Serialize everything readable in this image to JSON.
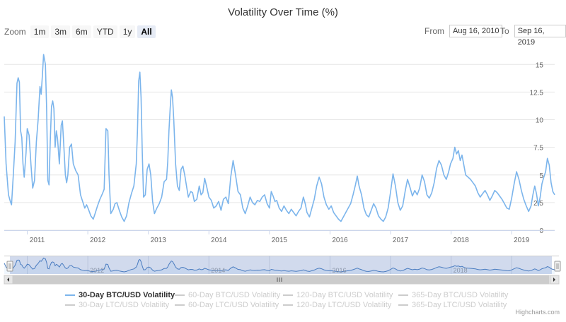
{
  "title": "Volatility Over Time (%)",
  "zoom": {
    "label": "Zoom",
    "buttons": [
      "1m",
      "3m",
      "6m",
      "YTD",
      "1y",
      "All"
    ],
    "active_index": 5
  },
  "range": {
    "from_label": "From",
    "from_value": "Aug 16, 2010",
    "to_label": "To",
    "to_value": "Sep 16, 2019"
  },
  "legend": [
    {
      "label": "30-Day BTC/USD Volatility",
      "visible": true
    },
    {
      "label": "60-Day BTC/USD Volatility",
      "visible": false
    },
    {
      "label": "120-Day BTC/USD Volatility",
      "visible": false
    },
    {
      "label": "365-Day BTC/USD Volatility",
      "visible": false
    },
    {
      "label": "30-Day LTC/USD Volatility",
      "visible": false
    },
    {
      "label": "60-Day LTC/USD Volatility",
      "visible": false
    },
    {
      "label": "120-Day LTC/USD Volatility",
      "visible": false
    },
    {
      "label": "365-Day LTC/USD Volatility",
      "visible": false
    }
  ],
  "credits": "Highcharts.com",
  "colors": {
    "series": "#7cb5ec",
    "navigator_fill": "#c9d4ea",
    "grid": "#e6e6e6",
    "axis_text": "#666666",
    "hidden_legend": "#cccccc"
  },
  "chart_data": {
    "type": "line",
    "x_unit": "decimal year",
    "xlim": [
      2010.62,
      2019.71
    ],
    "ylim": [
      0,
      17
    ],
    "y_ticks": [
      0,
      2.5,
      5,
      7.5,
      10,
      12.5,
      15
    ],
    "y_tick_labels": [
      "0",
      "2.5",
      "5",
      "7.5",
      "10",
      "12.5",
      "15"
    ],
    "x_ticks": [
      2011,
      2012,
      2013,
      2014,
      2015,
      2016,
      2017,
      2018,
      2019
    ],
    "x_tick_labels": [
      "2011",
      "2012",
      "2013",
      "2014",
      "2015",
      "2016",
      "2017",
      "2018",
      "2019"
    ],
    "navigator_labels": [
      "2012",
      "2014",
      "2016",
      "2018"
    ],
    "series": [
      {
        "name": "30-Day BTC/USD Volatility",
        "points": [
          [
            2010.62,
            10.3
          ],
          [
            2010.65,
            6.0
          ],
          [
            2010.69,
            3.2
          ],
          [
            2010.72,
            2.6
          ],
          [
            2010.74,
            2.3
          ],
          [
            2010.77,
            5.0
          ],
          [
            2010.8,
            8.0
          ],
          [
            2010.83,
            13.3
          ],
          [
            2010.85,
            13.8
          ],
          [
            2010.87,
            13.4
          ],
          [
            2010.89,
            9.0
          ],
          [
            2010.91,
            8.4
          ],
          [
            2010.93,
            6.0
          ],
          [
            2010.95,
            4.8
          ],
          [
            2010.98,
            7.0
          ],
          [
            2011.0,
            9.2
          ],
          [
            2011.03,
            8.6
          ],
          [
            2011.06,
            6.0
          ],
          [
            2011.09,
            3.8
          ],
          [
            2011.12,
            4.5
          ],
          [
            2011.15,
            8.0
          ],
          [
            2011.18,
            10.0
          ],
          [
            2011.21,
            13.0
          ],
          [
            2011.23,
            12.3
          ],
          [
            2011.25,
            14.0
          ],
          [
            2011.27,
            15.9
          ],
          [
            2011.3,
            15.0
          ],
          [
            2011.32,
            11.0
          ],
          [
            2011.34,
            4.5
          ],
          [
            2011.36,
            4.1
          ],
          [
            2011.38,
            8.0
          ],
          [
            2011.4,
            11.2
          ],
          [
            2011.42,
            11.7
          ],
          [
            2011.44,
            11.0
          ],
          [
            2011.46,
            7.5
          ],
          [
            2011.48,
            9.0
          ],
          [
            2011.5,
            8.3
          ],
          [
            2011.53,
            6.0
          ],
          [
            2011.56,
            9.5
          ],
          [
            2011.58,
            9.9
          ],
          [
            2011.6,
            8.0
          ],
          [
            2011.63,
            5.0
          ],
          [
            2011.65,
            4.3
          ],
          [
            2011.67,
            5.0
          ],
          [
            2011.7,
            7.5
          ],
          [
            2011.73,
            7.8
          ],
          [
            2011.76,
            6.0
          ],
          [
            2011.8,
            5.4
          ],
          [
            2011.84,
            5.0
          ],
          [
            2011.88,
            3.2
          ],
          [
            2011.92,
            2.5
          ],
          [
            2011.95,
            2.0
          ],
          [
            2011.98,
            2.3
          ],
          [
            2012.01,
            1.9
          ],
          [
            2012.05,
            1.3
          ],
          [
            2012.09,
            1.0
          ],
          [
            2012.12,
            1.5
          ],
          [
            2012.16,
            2.2
          ],
          [
            2012.2,
            2.8
          ],
          [
            2012.24,
            3.3
          ],
          [
            2012.27,
            3.7
          ],
          [
            2012.3,
            9.2
          ],
          [
            2012.33,
            9.0
          ],
          [
            2012.35,
            5.0
          ],
          [
            2012.38,
            1.5
          ],
          [
            2012.42,
            1.9
          ],
          [
            2012.45,
            2.4
          ],
          [
            2012.48,
            2.5
          ],
          [
            2012.52,
            1.8
          ],
          [
            2012.56,
            1.2
          ],
          [
            2012.6,
            0.8
          ],
          [
            2012.64,
            1.3
          ],
          [
            2012.68,
            2.5
          ],
          [
            2012.72,
            3.3
          ],
          [
            2012.76,
            4.0
          ],
          [
            2012.8,
            6.0
          ],
          [
            2012.82,
            9.0
          ],
          [
            2012.84,
            13.5
          ],
          [
            2012.86,
            14.3
          ],
          [
            2012.88,
            12.0
          ],
          [
            2012.9,
            7.0
          ],
          [
            2012.92,
            3.0
          ],
          [
            2012.95,
            3.2
          ],
          [
            2012.98,
            5.5
          ],
          [
            2013.01,
            6.0
          ],
          [
            2013.04,
            5.0
          ],
          [
            2013.07,
            2.6
          ],
          [
            2013.1,
            1.5
          ],
          [
            2013.14,
            2.0
          ],
          [
            2013.18,
            2.4
          ],
          [
            2013.22,
            3.0
          ],
          [
            2013.26,
            4.4
          ],
          [
            2013.3,
            4.6
          ],
          [
            2013.32,
            6.2
          ],
          [
            2013.34,
            9.0
          ],
          [
            2013.36,
            11.0
          ],
          [
            2013.38,
            12.7
          ],
          [
            2013.4,
            12.0
          ],
          [
            2013.42,
            10.0
          ],
          [
            2013.45,
            6.0
          ],
          [
            2013.48,
            4.0
          ],
          [
            2013.51,
            3.6
          ],
          [
            2013.54,
            5.5
          ],
          [
            2013.57,
            5.8
          ],
          [
            2013.6,
            5.0
          ],
          [
            2013.63,
            4.0
          ],
          [
            2013.66,
            3.0
          ],
          [
            2013.7,
            3.5
          ],
          [
            2013.73,
            3.4
          ],
          [
            2013.76,
            2.6
          ],
          [
            2013.8,
            2.8
          ],
          [
            2013.84,
            4.0
          ],
          [
            2013.87,
            3.2
          ],
          [
            2013.9,
            3.4
          ],
          [
            2013.93,
            4.7
          ],
          [
            2013.96,
            4.0
          ],
          [
            2014.0,
            3.0
          ],
          [
            2014.04,
            2.7
          ],
          [
            2014.08,
            2.0
          ],
          [
            2014.12,
            2.2
          ],
          [
            2014.16,
            2.6
          ],
          [
            2014.2,
            1.8
          ],
          [
            2014.24,
            2.8
          ],
          [
            2014.28,
            3.0
          ],
          [
            2014.32,
            2.4
          ],
          [
            2014.36,
            4.8
          ],
          [
            2014.4,
            6.3
          ],
          [
            2014.44,
            5.0
          ],
          [
            2014.48,
            3.5
          ],
          [
            2014.52,
            3.2
          ],
          [
            2014.56,
            2.0
          ],
          [
            2014.6,
            1.5
          ],
          [
            2014.64,
            2.2
          ],
          [
            2014.68,
            3.0
          ],
          [
            2014.72,
            2.5
          ],
          [
            2014.76,
            2.3
          ],
          [
            2014.8,
            2.7
          ],
          [
            2014.84,
            2.6
          ],
          [
            2014.88,
            3.0
          ],
          [
            2014.92,
            3.2
          ],
          [
            2014.96,
            2.4
          ],
          [
            2015.0,
            2.0
          ],
          [
            2015.03,
            3.5
          ],
          [
            2015.06,
            3.1
          ],
          [
            2015.09,
            2.6
          ],
          [
            2015.12,
            2.7
          ],
          [
            2015.16,
            2.0
          ],
          [
            2015.2,
            1.7
          ],
          [
            2015.24,
            2.2
          ],
          [
            2015.28,
            1.8
          ],
          [
            2015.32,
            1.5
          ],
          [
            2015.36,
            1.9
          ],
          [
            2015.4,
            1.6
          ],
          [
            2015.44,
            1.3
          ],
          [
            2015.48,
            1.7
          ],
          [
            2015.52,
            2.0
          ],
          [
            2015.56,
            3.0
          ],
          [
            2015.59,
            2.4
          ],
          [
            2015.62,
            1.6
          ],
          [
            2015.66,
            1.2
          ],
          [
            2015.7,
            2.0
          ],
          [
            2015.74,
            2.8
          ],
          [
            2015.78,
            4.0
          ],
          [
            2015.82,
            4.8
          ],
          [
            2015.86,
            4.2
          ],
          [
            2015.9,
            3.0
          ],
          [
            2015.94,
            2.3
          ],
          [
            2015.98,
            1.9
          ],
          [
            2016.02,
            2.2
          ],
          [
            2016.06,
            1.6
          ],
          [
            2016.1,
            1.3
          ],
          [
            2016.14,
            1.0
          ],
          [
            2016.18,
            0.8
          ],
          [
            2016.22,
            1.2
          ],
          [
            2016.26,
            1.6
          ],
          [
            2016.3,
            2.0
          ],
          [
            2016.34,
            2.4
          ],
          [
            2016.38,
            3.2
          ],
          [
            2016.42,
            4.1
          ],
          [
            2016.45,
            4.9
          ],
          [
            2016.48,
            4.0
          ],
          [
            2016.52,
            3.2
          ],
          [
            2016.56,
            2.0
          ],
          [
            2016.6,
            1.4
          ],
          [
            2016.64,
            1.2
          ],
          [
            2016.68,
            1.8
          ],
          [
            2016.72,
            2.4
          ],
          [
            2016.76,
            2.0
          ],
          [
            2016.8,
            1.3
          ],
          [
            2016.84,
            1.0
          ],
          [
            2016.88,
            0.8
          ],
          [
            2016.92,
            1.2
          ],
          [
            2016.96,
            2.0
          ],
          [
            2017.0,
            3.5
          ],
          [
            2017.04,
            5.1
          ],
          [
            2017.08,
            4.0
          ],
          [
            2017.12,
            2.5
          ],
          [
            2017.16,
            1.8
          ],
          [
            2017.2,
            2.2
          ],
          [
            2017.24,
            3.5
          ],
          [
            2017.28,
            4.6
          ],
          [
            2017.32,
            3.9
          ],
          [
            2017.36,
            3.1
          ],
          [
            2017.4,
            3.6
          ],
          [
            2017.44,
            3.2
          ],
          [
            2017.48,
            3.8
          ],
          [
            2017.52,
            5.0
          ],
          [
            2017.56,
            4.4
          ],
          [
            2017.6,
            3.2
          ],
          [
            2017.64,
            2.9
          ],
          [
            2017.68,
            3.4
          ],
          [
            2017.72,
            4.3
          ],
          [
            2017.76,
            5.6
          ],
          [
            2017.8,
            6.3
          ],
          [
            2017.84,
            5.9
          ],
          [
            2017.88,
            5.0
          ],
          [
            2017.92,
            4.6
          ],
          [
            2017.96,
            5.3
          ],
          [
            2017.99,
            6.0
          ],
          [
            2018.03,
            6.5
          ],
          [
            2018.06,
            7.5
          ],
          [
            2018.09,
            6.9
          ],
          [
            2018.12,
            7.2
          ],
          [
            2018.15,
            6.3
          ],
          [
            2018.18,
            6.8
          ],
          [
            2018.21,
            5.9
          ],
          [
            2018.24,
            5.0
          ],
          [
            2018.28,
            4.8
          ],
          [
            2018.32,
            4.6
          ],
          [
            2018.36,
            4.3
          ],
          [
            2018.4,
            4.0
          ],
          [
            2018.44,
            3.4
          ],
          [
            2018.48,
            3.0
          ],
          [
            2018.52,
            3.3
          ],
          [
            2018.56,
            3.6
          ],
          [
            2018.6,
            3.2
          ],
          [
            2018.64,
            2.7
          ],
          [
            2018.68,
            3.1
          ],
          [
            2018.72,
            3.6
          ],
          [
            2018.76,
            3.4
          ],
          [
            2018.8,
            3.1
          ],
          [
            2018.84,
            2.8
          ],
          [
            2018.88,
            2.4
          ],
          [
            2018.92,
            2.0
          ],
          [
            2018.96,
            1.9
          ],
          [
            2019.0,
            2.9
          ],
          [
            2019.04,
            4.2
          ],
          [
            2019.08,
            5.3
          ],
          [
            2019.12,
            4.6
          ],
          [
            2019.16,
            3.6
          ],
          [
            2019.2,
            2.8
          ],
          [
            2019.24,
            2.2
          ],
          [
            2019.28,
            1.7
          ],
          [
            2019.32,
            2.2
          ],
          [
            2019.35,
            3.2
          ],
          [
            2019.38,
            4.0
          ],
          [
            2019.41,
            3.3
          ],
          [
            2019.44,
            2.2
          ],
          [
            2019.47,
            3.0
          ],
          [
            2019.5,
            4.2
          ],
          [
            2019.53,
            4.8
          ],
          [
            2019.56,
            5.3
          ],
          [
            2019.59,
            6.5
          ],
          [
            2019.62,
            5.9
          ],
          [
            2019.65,
            4.3
          ],
          [
            2019.68,
            3.5
          ],
          [
            2019.71,
            3.2
          ]
        ]
      }
    ]
  }
}
